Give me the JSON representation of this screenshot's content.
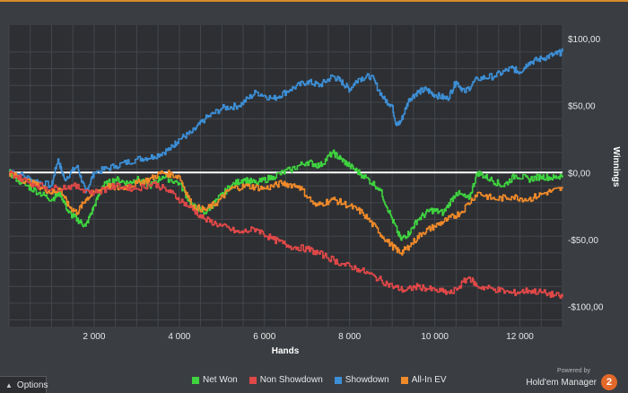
{
  "chart_data": {
    "type": "line",
    "xlabel": "Hands",
    "ylabel": "Winnings",
    "xlim": [
      0,
      13000
    ],
    "ylim": [
      -115,
      110
    ],
    "x_ticks": [
      2000,
      4000,
      6000,
      8000,
      10000,
      12000
    ],
    "x_tick_labels": [
      "2 000",
      "4 000",
      "6 000",
      "8 000",
      "10 000",
      "12 000"
    ],
    "y_ticks": [
      100,
      50,
      0,
      -50,
      -100
    ],
    "y_tick_labels": [
      "$100,00",
      "$50,00",
      "$0,00",
      "-$50,00",
      "-$100,00"
    ],
    "grid": true,
    "legend_position": "bottom",
    "zero_line_color": "#ffffff",
    "series": [
      {
        "name": "Showdown",
        "color": "#3d8fd6",
        "points": [
          [
            0,
            2
          ],
          [
            500,
            -5
          ],
          [
            1000,
            -10
          ],
          [
            1150,
            10
          ],
          [
            1300,
            -5
          ],
          [
            1600,
            5
          ],
          [
            1800,
            -15
          ],
          [
            2000,
            0
          ],
          [
            2500,
            5
          ],
          [
            3000,
            10
          ],
          [
            3400,
            12
          ],
          [
            3800,
            18
          ],
          [
            4000,
            25
          ],
          [
            4300,
            30
          ],
          [
            4600,
            40
          ],
          [
            5000,
            48
          ],
          [
            5400,
            50
          ],
          [
            5800,
            60
          ],
          [
            6200,
            55
          ],
          [
            6600,
            62
          ],
          [
            7000,
            68
          ],
          [
            7300,
            65
          ],
          [
            7600,
            72
          ],
          [
            7800,
            68
          ],
          [
            8000,
            62
          ],
          [
            8200,
            70
          ],
          [
            8500,
            72
          ],
          [
            8800,
            55
          ],
          [
            9000,
            50
          ],
          [
            9100,
            35
          ],
          [
            9200,
            38
          ],
          [
            9400,
            55
          ],
          [
            9600,
            60
          ],
          [
            9800,
            62
          ],
          [
            10000,
            58
          ],
          [
            10300,
            55
          ],
          [
            10500,
            68
          ],
          [
            10700,
            60
          ],
          [
            11000,
            70
          ],
          [
            11400,
            72
          ],
          [
            11800,
            78
          ],
          [
            12000,
            75
          ],
          [
            12200,
            82
          ],
          [
            12500,
            85
          ],
          [
            12800,
            88
          ],
          [
            13000,
            90
          ]
        ]
      },
      {
        "name": "Net Won",
        "color": "#3fd33f",
        "points": [
          [
            0,
            0
          ],
          [
            300,
            -8
          ],
          [
            700,
            -15
          ],
          [
            1000,
            -20
          ],
          [
            1200,
            -15
          ],
          [
            1400,
            -30
          ],
          [
            1600,
            -35
          ],
          [
            1800,
            -40
          ],
          [
            2000,
            -25
          ],
          [
            2200,
            -10
          ],
          [
            2500,
            -5
          ],
          [
            2800,
            -8
          ],
          [
            3000,
            -5
          ],
          [
            3300,
            -10
          ],
          [
            3600,
            -3
          ],
          [
            4000,
            -8
          ],
          [
            4300,
            -25
          ],
          [
            4600,
            -30
          ],
          [
            4900,
            -20
          ],
          [
            5200,
            -10
          ],
          [
            5500,
            -5
          ],
          [
            5800,
            -8
          ],
          [
            6200,
            -3
          ],
          [
            6600,
            2
          ],
          [
            7000,
            8
          ],
          [
            7300,
            5
          ],
          [
            7600,
            15
          ],
          [
            7800,
            10
          ],
          [
            8000,
            5
          ],
          [
            8300,
            -2
          ],
          [
            8700,
            -12
          ],
          [
            9000,
            -35
          ],
          [
            9200,
            -50
          ],
          [
            9400,
            -45
          ],
          [
            9600,
            -35
          ],
          [
            9900,
            -28
          ],
          [
            10200,
            -30
          ],
          [
            10500,
            -15
          ],
          [
            10800,
            -20
          ],
          [
            11000,
            0
          ],
          [
            11300,
            -5
          ],
          [
            11600,
            -10
          ],
          [
            11900,
            -2
          ],
          [
            12200,
            -5
          ],
          [
            12500,
            -3
          ],
          [
            12800,
            -4
          ],
          [
            13000,
            -2
          ]
        ]
      },
      {
        "name": "All-In EV",
        "color": "#f08a2a",
        "points": [
          [
            0,
            0
          ],
          [
            300,
            -5
          ],
          [
            700,
            -10
          ],
          [
            1000,
            -15
          ],
          [
            1200,
            -12
          ],
          [
            1400,
            -25
          ],
          [
            1600,
            -30
          ],
          [
            1800,
            -20
          ],
          [
            2000,
            -15
          ],
          [
            2300,
            -10
          ],
          [
            2600,
            -12
          ],
          [
            3000,
            -8
          ],
          [
            3300,
            -5
          ],
          [
            3600,
            0
          ],
          [
            4000,
            -3
          ],
          [
            4300,
            -25
          ],
          [
            4600,
            -28
          ],
          [
            4900,
            -22
          ],
          [
            5200,
            -12
          ],
          [
            5600,
            -10
          ],
          [
            6000,
            -12
          ],
          [
            6400,
            -8
          ],
          [
            6800,
            -10
          ],
          [
            7200,
            -25
          ],
          [
            7600,
            -20
          ],
          [
            8000,
            -25
          ],
          [
            8300,
            -30
          ],
          [
            8700,
            -45
          ],
          [
            9000,
            -55
          ],
          [
            9200,
            -60
          ],
          [
            9400,
            -55
          ],
          [
            9700,
            -45
          ],
          [
            10000,
            -40
          ],
          [
            10300,
            -35
          ],
          [
            10600,
            -30
          ],
          [
            11000,
            -15
          ],
          [
            11400,
            -20
          ],
          [
            11800,
            -18
          ],
          [
            12200,
            -20
          ],
          [
            12600,
            -15
          ],
          [
            13000,
            -12
          ]
        ]
      },
      {
        "name": "Non Showdown",
        "color": "#e04848",
        "points": [
          [
            0,
            0
          ],
          [
            500,
            -8
          ],
          [
            1000,
            -12
          ],
          [
            1500,
            -10
          ],
          [
            2000,
            -15
          ],
          [
            2500,
            -10
          ],
          [
            3000,
            -12
          ],
          [
            3400,
            -8
          ],
          [
            3800,
            -15
          ],
          [
            4200,
            -25
          ],
          [
            4600,
            -35
          ],
          [
            5000,
            -40
          ],
          [
            5400,
            -45
          ],
          [
            5800,
            -42
          ],
          [
            6200,
            -50
          ],
          [
            6600,
            -55
          ],
          [
            7000,
            -57
          ],
          [
            7400,
            -62
          ],
          [
            7800,
            -68
          ],
          [
            8200,
            -72
          ],
          [
            8600,
            -78
          ],
          [
            9000,
            -85
          ],
          [
            9300,
            -88
          ],
          [
            9600,
            -85
          ],
          [
            10000,
            -88
          ],
          [
            10400,
            -90
          ],
          [
            10800,
            -78
          ],
          [
            11000,
            -85
          ],
          [
            11400,
            -87
          ],
          [
            11800,
            -90
          ],
          [
            12200,
            -88
          ],
          [
            12600,
            -90
          ],
          [
            13000,
            -93
          ]
        ]
      }
    ]
  },
  "ui": {
    "options_label": "Options",
    "brand_powered": "Powered by",
    "brand_name": "Hold'em Manager",
    "brand_badge": "2"
  },
  "legend": [
    {
      "label": "Net Won",
      "color": "#3fd33f"
    },
    {
      "label": "Non Showdown",
      "color": "#e04848"
    },
    {
      "label": "Showdown",
      "color": "#3d8fd6"
    },
    {
      "label": "All-In EV",
      "color": "#f08a2a"
    }
  ]
}
